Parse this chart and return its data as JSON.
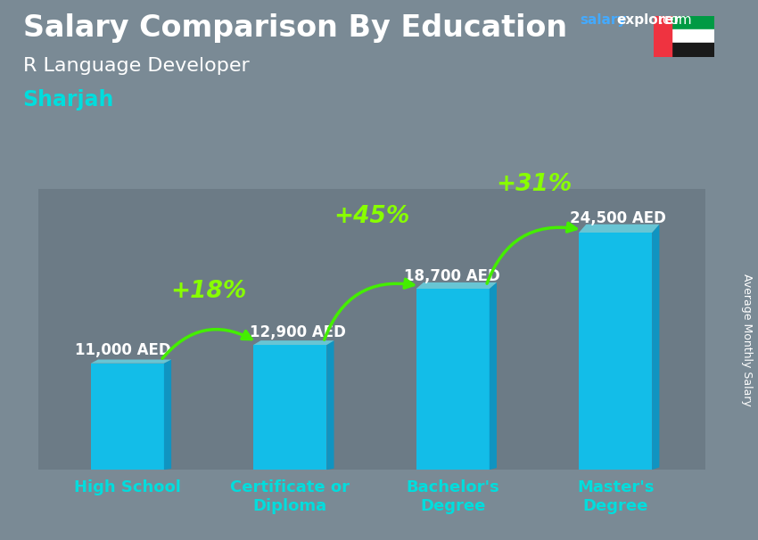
{
  "title": "Salary Comparison By Education",
  "subtitle1": "R Language Developer",
  "subtitle2": "Sharjah",
  "ylabel": "Average Monthly Salary",
  "categories": [
    "High School",
    "Certificate or\nDiploma",
    "Bachelor's\nDegree",
    "Master's\nDegree"
  ],
  "values": [
    11000,
    12900,
    18700,
    24500
  ],
  "value_labels": [
    "11,000 AED",
    "12,900 AED",
    "18,700 AED",
    "24,500 AED"
  ],
  "pct_changes": [
    "+18%",
    "+45%",
    "+31%"
  ],
  "bar_color": "#00CCFF",
  "bar_dark": "#0099CC",
  "bar_light": "#66EEFF",
  "arrow_color": "#44EE00",
  "title_color": "#FFFFFF",
  "subtitle1_color": "#FFFFFF",
  "subtitle2_color": "#00DDDD",
  "value_label_color": "#FFFFFF",
  "pct_color": "#88FF00",
  "xlabel_color": "#00DDDD",
  "ylabel_color": "#FFFFFF",
  "bg_color": "#7A8A95",
  "overlay_color": "#55667788",
  "ylim": [
    0,
    29000
  ],
  "title_fontsize": 24,
  "subtitle1_fontsize": 16,
  "subtitle2_fontsize": 17,
  "value_fontsize": 12,
  "pct_fontsize": 19,
  "xlabel_fontsize": 13,
  "ylabel_fontsize": 9
}
